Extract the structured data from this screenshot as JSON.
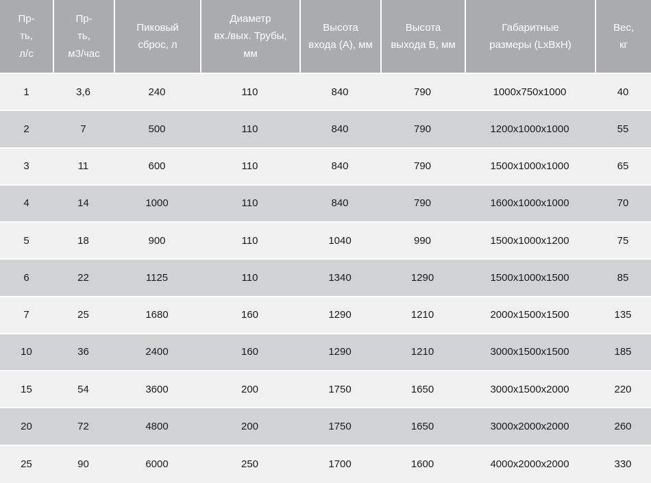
{
  "colors": {
    "header_bg": "#a9abae",
    "header_text": "#ffffff",
    "row_light": "#f0f0f1",
    "row_dark": "#d0d2d3",
    "body_text": "#1a1a1a",
    "separator": "#ffffff"
  },
  "header_display": [
    "Пр-\nть,\nл/с",
    "Пр-\nть,\nм3/час",
    "Пиковый\nсброс, л",
    "Диаметр\nвх./вых. Трубы,\nмм",
    "Высота\nвхода (А), мм",
    "Высота\nвыхода В, мм",
    "Габаритные\nразмеры (LxBxH)",
    "Вес,\nкг"
  ],
  "chart_data": {
    "type": "table",
    "title": "",
    "columns": [
      "Пр-ть, л/с",
      "Пр-ть, м3/час",
      "Пиковый сброс, л",
      "Диаметр вх./вых. Трубы, мм",
      "Высота входа (А), мм",
      "Высота выхода В, мм",
      "Габаритные размеры (LxBxH)",
      "Вес, кг"
    ],
    "rows": [
      [
        "1",
        "3,6",
        "240",
        "110",
        "840",
        "790",
        "1000x750x1000",
        "40"
      ],
      [
        "2",
        "7",
        "500",
        "110",
        "840",
        "790",
        "1200x1000x1000",
        "55"
      ],
      [
        "3",
        "11",
        "600",
        "110",
        "840",
        "790",
        "1500x1000x1000",
        "65"
      ],
      [
        "4",
        "14",
        "1000",
        "110",
        "840",
        "790",
        "1600x1000x1000",
        "70"
      ],
      [
        "5",
        "18",
        "900",
        "110",
        "1040",
        "990",
        "1500x1000x1200",
        "75"
      ],
      [
        "6",
        "22",
        "1125",
        "110",
        "1340",
        "1290",
        "1500x1000x1500",
        "85"
      ],
      [
        "7",
        "25",
        "1680",
        "160",
        "1290",
        "1210",
        "2000x1500x1500",
        "135"
      ],
      [
        "10",
        "36",
        "2400",
        "160",
        "1290",
        "1210",
        "3000x1500x1500",
        "185"
      ],
      [
        "15",
        "54",
        "3600",
        "200",
        "1750",
        "1650",
        "3000x1500x2000",
        "220"
      ],
      [
        "20",
        "72",
        "4800",
        "200",
        "1750",
        "1650",
        "3000x2000x2000",
        "260"
      ],
      [
        "25",
        "90",
        "6000",
        "250",
        "1700",
        "1600",
        "4000x2000x2000",
        "330"
      ]
    ],
    "layout": {
      "striping": "odd rows light, even rows gray",
      "header_separators": "white vertical lines between header cells",
      "alignment": "all cells centered"
    }
  }
}
